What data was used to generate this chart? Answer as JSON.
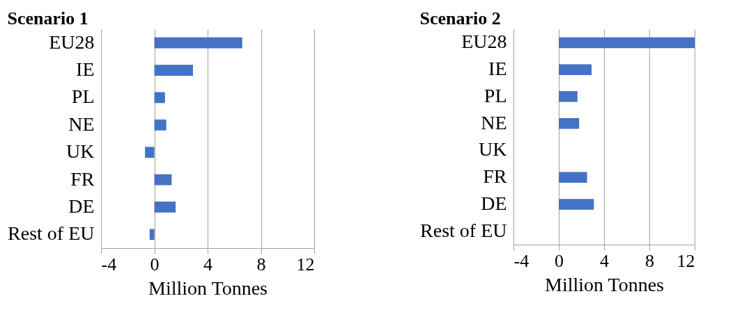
{
  "chart_data": [
    {
      "type": "bar",
      "orientation": "horizontal",
      "title": "Scenario 1",
      "xlabel": "Million Tonnes",
      "categories": [
        "EU28",
        "IE",
        "PL",
        "NE",
        "UK",
        "FR",
        "DE",
        "Rest of EU"
      ],
      "values": [
        6.6,
        2.9,
        0.8,
        0.9,
        -0.7,
        1.3,
        1.6,
        -0.35
      ],
      "color": "#4472c4",
      "xlim": [
        -4,
        12
      ],
      "xticks": [
        -4,
        0,
        4,
        8,
        12
      ],
      "grid": "x"
    },
    {
      "type": "bar",
      "orientation": "horizontal",
      "title": "Scenario 2",
      "xlabel": "Million Tonnes",
      "categories": [
        "EU28",
        "IE",
        "PL",
        "NE",
        "UK",
        "FR",
        "DE",
        "Rest of EU"
      ],
      "values": [
        12,
        2.9,
        1.65,
        1.8,
        0,
        2.5,
        3.1,
        0
      ],
      "color": "#4472c4",
      "xlim": [
        -4,
        12
      ],
      "xticks": [
        -4,
        0,
        4,
        8,
        12
      ],
      "grid": "x"
    }
  ]
}
